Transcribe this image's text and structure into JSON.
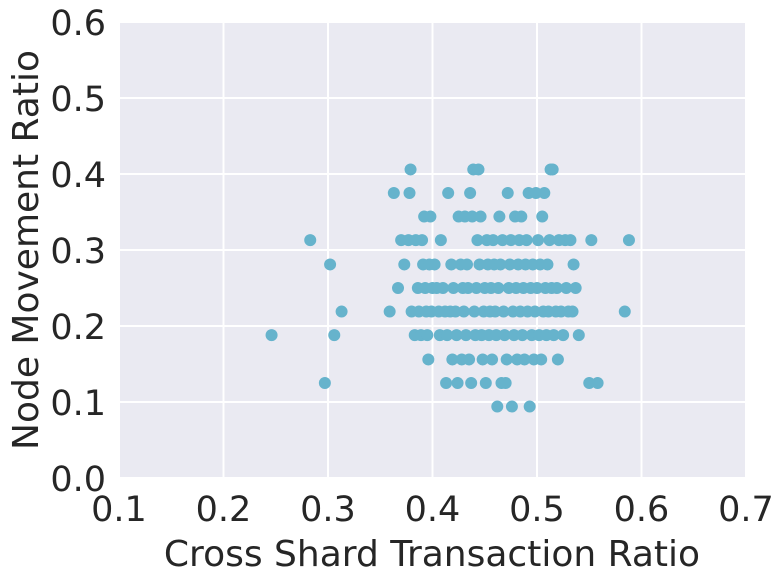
{
  "chart_data": {
    "type": "scatter",
    "xlabel": "Cross Shard Transaction Ratio",
    "ylabel": "Node Movement Ratio",
    "xlim": [
      0.1,
      0.7
    ],
    "ylim": [
      0.0,
      0.6
    ],
    "xticks": [
      0.1,
      0.2,
      0.3,
      0.4,
      0.5,
      0.6,
      0.7
    ],
    "yticks": [
      0.0,
      0.1,
      0.2,
      0.3,
      0.4,
      0.5,
      0.6
    ],
    "xtick_labels": [
      "0.1",
      "0.2",
      "0.3",
      "0.4",
      "0.5",
      "0.6",
      "0.7"
    ],
    "ytick_labels": [
      "0.0",
      "0.1",
      "0.2",
      "0.3",
      "0.4",
      "0.5",
      "0.6"
    ],
    "grid": true,
    "legend": "none",
    "colors": {
      "background": "#eaeaf2",
      "grid": "#ffffff",
      "marker": "#66b3cc"
    },
    "points": [
      [
        0.246,
        0.188
      ],
      [
        0.283,
        0.313
      ],
      [
        0.297,
        0.125
      ],
      [
        0.302,
        0.281
      ],
      [
        0.306,
        0.188
      ],
      [
        0.313,
        0.219
      ],
      [
        0.359,
        0.219
      ],
      [
        0.363,
        0.375
      ],
      [
        0.367,
        0.25
      ],
      [
        0.37,
        0.313
      ],
      [
        0.373,
        0.281
      ],
      [
        0.377,
        0.313
      ],
      [
        0.378,
        0.375
      ],
      [
        0.379,
        0.406
      ],
      [
        0.38,
        0.219
      ],
      [
        0.383,
        0.188
      ],
      [
        0.384,
        0.313
      ],
      [
        0.386,
        0.25
      ],
      [
        0.387,
        0.219
      ],
      [
        0.389,
        0.188
      ],
      [
        0.39,
        0.313
      ],
      [
        0.391,
        0.281
      ],
      [
        0.392,
        0.344
      ],
      [
        0.393,
        0.25
      ],
      [
        0.394,
        0.219
      ],
      [
        0.395,
        0.188
      ],
      [
        0.396,
        0.156
      ],
      [
        0.397,
        0.281
      ],
      [
        0.398,
        0.344
      ],
      [
        0.399,
        0.219
      ],
      [
        0.4,
        0.25
      ],
      [
        0.402,
        0.281
      ],
      [
        0.404,
        0.25
      ],
      [
        0.406,
        0.219
      ],
      [
        0.407,
        0.188
      ],
      [
        0.408,
        0.313
      ],
      [
        0.41,
        0.25
      ],
      [
        0.412,
        0.219
      ],
      [
        0.413,
        0.125
      ],
      [
        0.414,
        0.188
      ],
      [
        0.415,
        0.375
      ],
      [
        0.417,
        0.219
      ],
      [
        0.418,
        0.281
      ],
      [
        0.419,
        0.156
      ],
      [
        0.42,
        0.25
      ],
      [
        0.422,
        0.219
      ],
      [
        0.423,
        0.188
      ],
      [
        0.424,
        0.125
      ],
      [
        0.425,
        0.344
      ],
      [
        0.427,
        0.281
      ],
      [
        0.428,
        0.156
      ],
      [
        0.429,
        0.25
      ],
      [
        0.43,
        0.219
      ],
      [
        0.431,
        0.344
      ],
      [
        0.432,
        0.188
      ],
      [
        0.433,
        0.281
      ],
      [
        0.434,
        0.25
      ],
      [
        0.435,
        0.156
      ],
      [
        0.436,
        0.375
      ],
      [
        0.437,
        0.125
      ],
      [
        0.438,
        0.344
      ],
      [
        0.439,
        0.406
      ],
      [
        0.44,
        0.219
      ],
      [
        0.441,
        0.188
      ],
      [
        0.442,
        0.25
      ],
      [
        0.443,
        0.313
      ],
      [
        0.444,
        0.406
      ],
      [
        0.445,
        0.281
      ],
      [
        0.446,
        0.344
      ],
      [
        0.447,
        0.188
      ],
      [
        0.448,
        0.156
      ],
      [
        0.449,
        0.219
      ],
      [
        0.45,
        0.25
      ],
      [
        0.451,
        0.125
      ],
      [
        0.452,
        0.313
      ],
      [
        0.453,
        0.281
      ],
      [
        0.454,
        0.188
      ],
      [
        0.455,
        0.219
      ],
      [
        0.456,
        0.25
      ],
      [
        0.457,
        0.156
      ],
      [
        0.458,
        0.313
      ],
      [
        0.459,
        0.281
      ],
      [
        0.46,
        0.219
      ],
      [
        0.461,
        0.188
      ],
      [
        0.462,
        0.094
      ],
      [
        0.463,
        0.25
      ],
      [
        0.464,
        0.344
      ],
      [
        0.465,
        0.281
      ],
      [
        0.466,
        0.125
      ],
      [
        0.467,
        0.313
      ],
      [
        0.468,
        0.219
      ],
      [
        0.469,
        0.188
      ],
      [
        0.47,
        0.125
      ],
      [
        0.471,
        0.156
      ],
      [
        0.472,
        0.375
      ],
      [
        0.473,
        0.25
      ],
      [
        0.474,
        0.281
      ],
      [
        0.475,
        0.313
      ],
      [
        0.476,
        0.094
      ],
      [
        0.477,
        0.219
      ],
      [
        0.478,
        0.188
      ],
      [
        0.479,
        0.344
      ],
      [
        0.48,
        0.25
      ],
      [
        0.481,
        0.156
      ],
      [
        0.482,
        0.281
      ],
      [
        0.483,
        0.313
      ],
      [
        0.484,
        0.219
      ],
      [
        0.485,
        0.344
      ],
      [
        0.486,
        0.188
      ],
      [
        0.487,
        0.25
      ],
      [
        0.488,
        0.156
      ],
      [
        0.489,
        0.281
      ],
      [
        0.49,
        0.313
      ],
      [
        0.491,
        0.219
      ],
      [
        0.492,
        0.375
      ],
      [
        0.493,
        0.094
      ],
      [
        0.494,
        0.25
      ],
      [
        0.495,
        0.188
      ],
      [
        0.496,
        0.281
      ],
      [
        0.497,
        0.156
      ],
      [
        0.498,
        0.219
      ],
      [
        0.499,
        0.375
      ],
      [
        0.5,
        0.25
      ],
      [
        0.501,
        0.313
      ],
      [
        0.502,
        0.188
      ],
      [
        0.503,
        0.281
      ],
      [
        0.504,
        0.156
      ],
      [
        0.505,
        0.344
      ],
      [
        0.506,
        0.219
      ],
      [
        0.507,
        0.375
      ],
      [
        0.508,
        0.25
      ],
      [
        0.509,
        0.188
      ],
      [
        0.51,
        0.281
      ],
      [
        0.511,
        0.219
      ],
      [
        0.512,
        0.313
      ],
      [
        0.513,
        0.406
      ],
      [
        0.514,
        0.25
      ],
      [
        0.515,
        0.406
      ],
      [
        0.516,
        0.188
      ],
      [
        0.518,
        0.219
      ],
      [
        0.519,
        0.25
      ],
      [
        0.52,
        0.156
      ],
      [
        0.521,
        0.313
      ],
      [
        0.523,
        0.219
      ],
      [
        0.525,
        0.188
      ],
      [
        0.527,
        0.313
      ],
      [
        0.528,
        0.25
      ],
      [
        0.53,
        0.219
      ],
      [
        0.532,
        0.313
      ],
      [
        0.534,
        0.219
      ],
      [
        0.535,
        0.281
      ],
      [
        0.537,
        0.25
      ],
      [
        0.54,
        0.188
      ],
      [
        0.55,
        0.125
      ],
      [
        0.552,
        0.313
      ],
      [
        0.558,
        0.125
      ],
      [
        0.584,
        0.219
      ],
      [
        0.588,
        0.313
      ]
    ]
  }
}
